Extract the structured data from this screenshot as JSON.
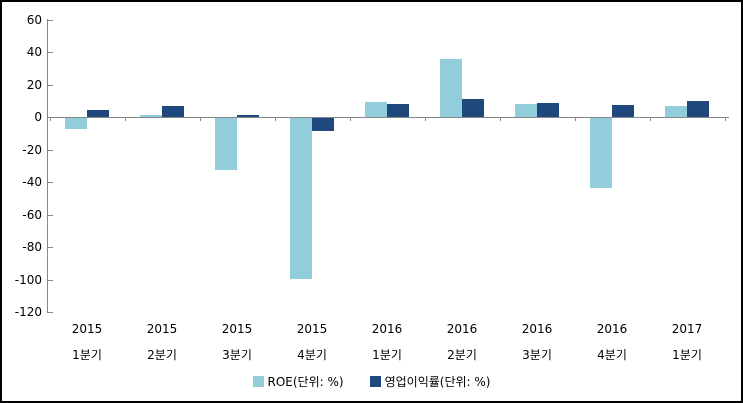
{
  "chart_data": {
    "type": "bar",
    "title": "",
    "categories": [
      {
        "year": "2015",
        "quarter": "1분기"
      },
      {
        "year": "2015",
        "quarter": "2분기"
      },
      {
        "year": "2015",
        "quarter": "3분기"
      },
      {
        "year": "2015",
        "quarter": "4분기"
      },
      {
        "year": "2016",
        "quarter": "1분기"
      },
      {
        "year": "2016",
        "quarter": "2분기"
      },
      {
        "year": "2016",
        "quarter": "3분기"
      },
      {
        "year": "2016",
        "quarter": "4분기"
      },
      {
        "year": "2017",
        "quarter": "1분기"
      }
    ],
    "series": [
      {
        "name": "ROE(단위: %)",
        "color": "#92CDDC",
        "values": [
          -6.5,
          1.5,
          -32,
          -99,
          9.5,
          36,
          8,
          -43,
          6.5
        ]
      },
      {
        "name": "영업이익률(단위: %)",
        "color": "#1F497D",
        "values": [
          4.5,
          7,
          1.5,
          -8,
          8,
          11,
          8.5,
          7.5,
          10
        ]
      }
    ],
    "y_axis": {
      "ticks": [
        60,
        40,
        20,
        0,
        -20,
        -40,
        -60,
        -80,
        -100,
        -120
      ],
      "min": -120,
      "max": 60
    },
    "x_axis": {
      "tick_marks_between_groups": true
    },
    "grid": false,
    "legend_position": "bottom",
    "axis_color": "#888888",
    "background_color": "#ffffff",
    "border_color": "#000000"
  }
}
